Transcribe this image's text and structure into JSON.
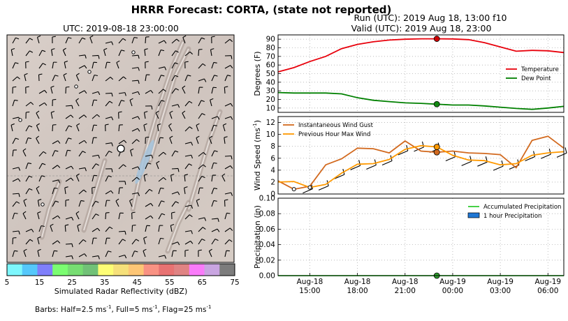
{
  "figure": {
    "title": "HRRR Forecast: CORTA, (state not reported)",
    "run_line": "Run (UTC): 2019 Aug 18, 13:00 f10",
    "valid_line": "Valid (UTC): 2019 Aug 18, 23:00"
  },
  "map": {
    "title": "UTC: 2019-08-18 23:00:00",
    "colorbar_label": "Simulated Radar Reflectivity (dBZ)",
    "colorbar_ticks": [
      "5",
      "15",
      "25",
      "35",
      "45",
      "55",
      "65",
      "75"
    ],
    "colorbar_colors": [
      "#7df7fd",
      "#55c8fb",
      "#7f7ffb",
      "#7bfd71",
      "#77dd72",
      "#71c177",
      "#fdfd75",
      "#f6e07a",
      "#fdc676",
      "#f99283",
      "#e87272",
      "#e08383",
      "#fa7bfa",
      "#c9a5e1",
      "#7c7c7c"
    ],
    "barbs_prefix": "Barbs: Half=2.5 ms",
    "barbs_mid": ", Full=5 ms",
    "barbs_end": ", Flag=25 ms",
    "barbs_sup": "-1"
  },
  "chart_data": [
    {
      "type": "line",
      "ylabel": "Degrees (F)",
      "ylim": [
        5,
        95
      ],
      "yticks": [
        10,
        20,
        30,
        40,
        50,
        60,
        70,
        80,
        90
      ],
      "x": [
        "2019-08-18 13:00",
        "2019-08-18 14:00",
        "2019-08-18 15:00",
        "2019-08-18 16:00",
        "2019-08-18 17:00",
        "2019-08-18 18:00",
        "2019-08-18 19:00",
        "2019-08-18 20:00",
        "2019-08-18 21:00",
        "2019-08-18 22:00",
        "2019-08-18 23:00",
        "2019-08-19 00:00",
        "2019-08-19 01:00",
        "2019-08-19 02:00",
        "2019-08-19 03:00",
        "2019-08-19 04:00",
        "2019-08-19 05:00",
        "2019-08-19 06:00",
        "2019-08-19 07:00"
      ],
      "series": [
        {
          "name": "Temperature",
          "color": "#e8000b",
          "values": [
            52,
            57,
            64,
            70,
            79,
            84,
            87,
            89,
            90,
            90.5,
            90.5,
            90.3,
            89.5,
            86,
            81,
            76,
            77,
            76.5,
            74.5
          ]
        },
        {
          "name": "Dew Point",
          "color": "#008000",
          "values": [
            28,
            27.5,
            27.5,
            27.5,
            26.5,
            22,
            19,
            17.5,
            16,
            15.5,
            14.5,
            13.5,
            13.5,
            12.5,
            11,
            9.5,
            8.5,
            10,
            12
          ]
        }
      ],
      "marker": {
        "x": "2019-08-18 23:00",
        "values": [
          90.5,
          14.5
        ]
      },
      "legend": "center-right",
      "grid": true
    },
    {
      "type": "line",
      "ylabel": "Wind Speed (ms",
      "ylabel_sup": "-1",
      "ylabel_end": ")",
      "ylim": [
        0,
        13
      ],
      "yticks": [
        0,
        2,
        4,
        6,
        8,
        10,
        12
      ],
      "x": [
        "2019-08-18 13:00",
        "2019-08-18 14:00",
        "2019-08-18 15:00",
        "2019-08-18 16:00",
        "2019-08-18 17:00",
        "2019-08-18 18:00",
        "2019-08-18 19:00",
        "2019-08-18 20:00",
        "2019-08-18 21:00",
        "2019-08-18 22:00",
        "2019-08-18 23:00",
        "2019-08-19 00:00",
        "2019-08-19 01:00",
        "2019-08-19 02:00",
        "2019-08-19 03:00",
        "2019-08-19 04:00",
        "2019-08-19 05:00",
        "2019-08-19 06:00",
        "2019-08-19 07:00"
      ],
      "series": [
        {
          "name": "Instantaneous Wind Gust",
          "color": "#d2691e",
          "values": [
            2.2,
            0.8,
            1.3,
            4.9,
            5.9,
            7.7,
            7.6,
            6.9,
            8.9,
            7.2,
            7.0,
            7.2,
            6.9,
            6.8,
            6.6,
            4.4,
            9.0,
            9.7,
            7.7
          ]
        },
        {
          "name": "Previous Hour Max Wind",
          "color": "#ff9900",
          "values": [
            2.0,
            2.1,
            1.1,
            1.6,
            3.5,
            5.0,
            5.1,
            5.8,
            7.5,
            8.1,
            7.9,
            6.5,
            5.7,
            5.6,
            4.9,
            5.1,
            6.5,
            6.9,
            7.1
          ]
        }
      ],
      "marker": {
        "x": "2019-08-18 23:00",
        "values": [
          7.0,
          7.9
        ]
      },
      "legend": "top-left",
      "grid": true
    },
    {
      "type": "bar",
      "ylabel": "Precipitation (in)",
      "ylim": [
        0,
        0.1
      ],
      "yticks": [
        "0.00",
        "0.02",
        "0.04",
        "0.06",
        "0.08",
        "0.10"
      ],
      "xticks": [
        [
          "Aug-18",
          "15:00"
        ],
        [
          "Aug-18",
          "18:00"
        ],
        [
          "Aug-18",
          "21:00"
        ],
        [
          "Aug-19",
          "00:00"
        ],
        [
          "Aug-19",
          "03:00"
        ],
        [
          "Aug-19",
          "06:00"
        ]
      ],
      "xtick_times": [
        "2019-08-18 15:00",
        "2019-08-18 18:00",
        "2019-08-18 21:00",
        "2019-08-19 00:00",
        "2019-08-19 03:00",
        "2019-08-19 06:00"
      ],
      "series": [
        {
          "name": "Accumulated Precipitation",
          "color": "#33cc33",
          "values": [
            0,
            0,
            0,
            0,
            0,
            0,
            0,
            0,
            0,
            0,
            0,
            0,
            0,
            0,
            0,
            0,
            0,
            0,
            0
          ]
        },
        {
          "name": "1 hour Precipitation",
          "color": "#1f77d4",
          "values": [
            0,
            0,
            0,
            0,
            0,
            0,
            0,
            0,
            0,
            0,
            0,
            0,
            0,
            0,
            0,
            0,
            0,
            0,
            0
          ]
        }
      ],
      "marker": {
        "x": "2019-08-18 23:00",
        "values": [
          0
        ]
      },
      "legend": "top-right",
      "grid": true
    }
  ]
}
